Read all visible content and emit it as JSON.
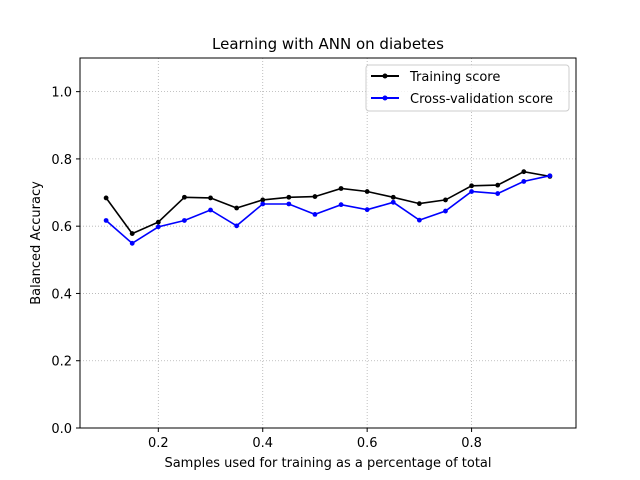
{
  "chart_data": {
    "type": "line",
    "title": "Learning with ANN on diabetes",
    "xlabel": "Samples used for training as a percentage of total",
    "ylabel": "Balanced Accuracy",
    "xlim": [
      0.05,
      1.0
    ],
    "ylim": [
      0.0,
      1.1
    ],
    "xticks": [
      0.2,
      0.4,
      0.6,
      0.8
    ],
    "xtick_labels": [
      "0.2",
      "0.4",
      "0.6",
      "0.8"
    ],
    "yticks": [
      0.0,
      0.2,
      0.4,
      0.6,
      0.8,
      1.0
    ],
    "ytick_labels": [
      "0.0",
      "0.2",
      "0.4",
      "0.6",
      "0.8",
      "1.0"
    ],
    "grid": true,
    "legend_position": "top-right",
    "x": [
      0.1,
      0.15,
      0.2,
      0.25,
      0.3,
      0.35,
      0.4,
      0.45,
      0.5,
      0.55,
      0.6,
      0.65,
      0.7,
      0.75,
      0.8,
      0.85,
      0.9,
      0.95
    ],
    "series": [
      {
        "name": "Training score",
        "color": "#000000",
        "values": [
          0.684,
          0.578,
          0.612,
          0.686,
          0.684,
          0.654,
          0.678,
          0.686,
          0.688,
          0.712,
          0.703,
          0.686,
          0.667,
          0.678,
          0.72,
          0.722,
          0.762,
          0.748
        ]
      },
      {
        "name": "Cross-validation score",
        "color": "#0000ff",
        "values": [
          0.617,
          0.549,
          0.598,
          0.617,
          0.648,
          0.601,
          0.666,
          0.666,
          0.635,
          0.664,
          0.649,
          0.671,
          0.618,
          0.645,
          0.703,
          0.697,
          0.733,
          0.75
        ]
      }
    ]
  }
}
